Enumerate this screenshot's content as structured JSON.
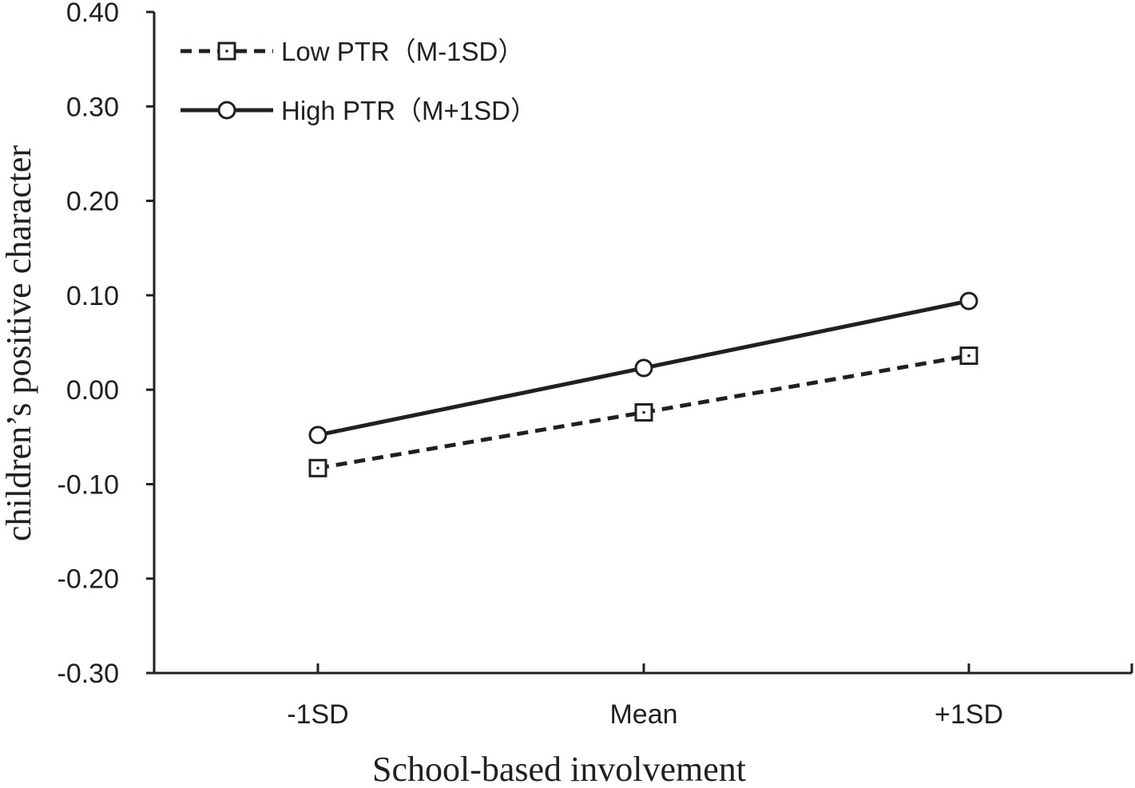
{
  "chart_data": {
    "type": "line",
    "categories": [
      "-1SD",
      "Mean",
      "+1SD"
    ],
    "series": [
      {
        "name": "Low PTR（M-1SD）",
        "values": [
          -0.083,
          -0.024,
          0.036
        ],
        "line_style": "dashed",
        "marker": "square",
        "color": "#231f20"
      },
      {
        "name": "High PTR（M+1SD）",
        "values": [
          -0.048,
          0.023,
          0.094
        ],
        "line_style": "solid",
        "marker": "circle",
        "color": "#231f20"
      }
    ],
    "xlabel": "School-based involvement",
    "ylabel": "children’s positive character",
    "ylim": [
      -0.3,
      0.4
    ],
    "yticks": [
      0.4,
      0.3,
      0.2,
      0.1,
      0.0,
      -0.1,
      -0.2,
      -0.3
    ],
    "ytick_labels": [
      "0.40",
      "0.30",
      "0.20",
      "0.10",
      "0.00",
      "-0.10",
      "-0.20",
      "-0.30"
    ],
    "grid": false,
    "legend_position": "top-left"
  }
}
